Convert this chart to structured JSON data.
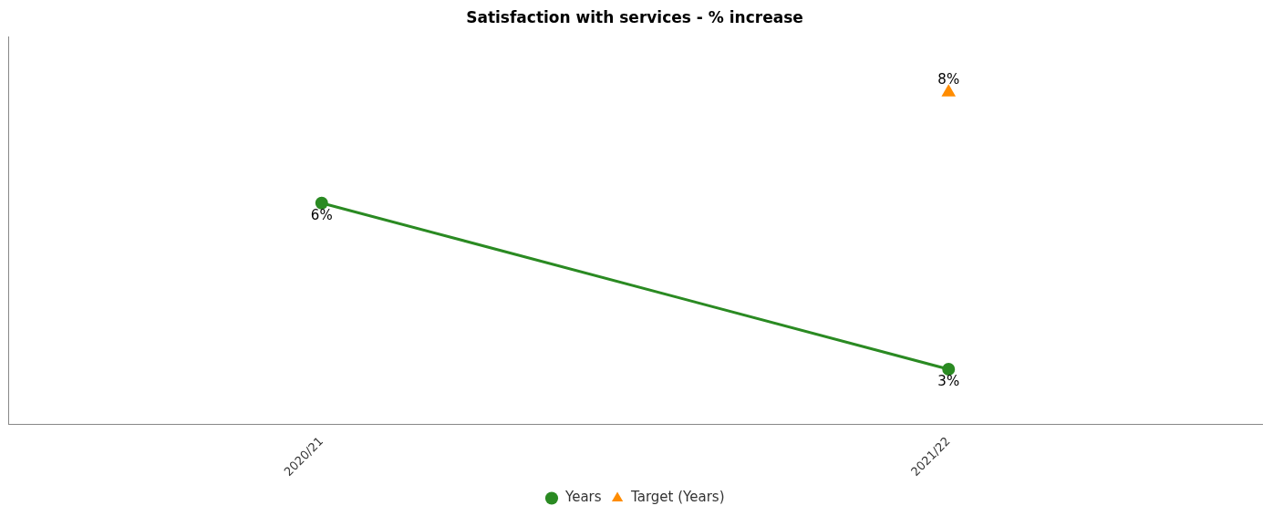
{
  "chart_data": {
    "type": "line",
    "title": "Satisfaction with services - % increase",
    "categories": [
      "2020/21",
      "2021/22"
    ],
    "series": [
      {
        "name": "Years",
        "color": "#2a8a22",
        "values": [
          6,
          3
        ],
        "value_labels": [
          "6%",
          "3%"
        ],
        "marker": "circle",
        "line_style": "solid"
      },
      {
        "name": "Target (Years)",
        "color": "#ff8c00",
        "type": "scatter",
        "x": [
          "2021/22"
        ],
        "values": [
          8
        ],
        "value_labels": [
          "8%"
        ],
        "marker": "triangle"
      }
    ],
    "tick_labels": "x",
    "grid": false,
    "legend": "bottom"
  }
}
